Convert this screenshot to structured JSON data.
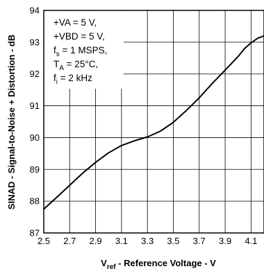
{
  "chart_data": {
    "type": "line",
    "title": "",
    "ylabel": "SINAD - Signal-to-Noise + Distortion - dB",
    "xlabel": {
      "prefix": "V",
      "subscript": "ref",
      "suffix": " - Reference Voltage - V"
    },
    "xlim": [
      2.5,
      4.2
    ],
    "ylim": [
      87,
      94
    ],
    "xticks": [
      "2.5",
      "2.7",
      "2.9",
      "3.1",
      "3.3",
      "3.5",
      "3.7",
      "3.9",
      "4.1"
    ],
    "yticks": [
      "87",
      "88",
      "89",
      "90",
      "91",
      "92",
      "93",
      "94"
    ],
    "grid": true,
    "annotations": [
      {
        "main": "+VA = 5 V,",
        "sub": "",
        "rest": ""
      },
      {
        "main": "+VBD = 5 V,",
        "sub": "",
        "rest": ""
      },
      {
        "main": "f",
        "sub": "s",
        "rest": " = 1 MSPS,"
      },
      {
        "main": "T",
        "sub": "A",
        "rest": " = 25°C,"
      },
      {
        "main": "f",
        "sub": "i",
        "rest": " = 2 kHz"
      }
    ],
    "series": [
      {
        "x": [
          2.5,
          2.6,
          2.7,
          2.8,
          2.9,
          3.0,
          3.1,
          3.2,
          3.3,
          3.4,
          3.5,
          3.6,
          3.7,
          3.8,
          3.9,
          4.0,
          4.05,
          4.1,
          4.15,
          4.2
        ],
        "y": [
          87.75,
          88.12,
          88.5,
          88.88,
          89.22,
          89.52,
          89.75,
          89.9,
          90.02,
          90.2,
          90.48,
          90.85,
          91.25,
          91.7,
          92.12,
          92.55,
          92.8,
          92.98,
          93.12,
          93.2
        ]
      }
    ],
    "colors": {
      "line": "#000000",
      "grid": "#000000",
      "background": "#ffffff"
    }
  }
}
